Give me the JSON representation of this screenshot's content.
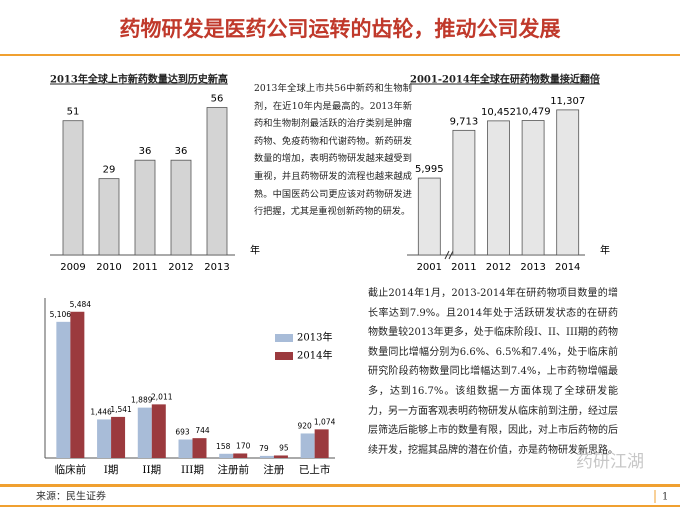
{
  "title": "药物研发是医药公司运转的齿轮，推动公司发展",
  "paragraph_1": "2013年全球上市共56中新药和生物制剂，在近10年内是最高的。2013年新药和生物制剂最活跃的治疗类别是肿瘤药物、免疫药物和代谢药物。新药研发数量的增加，表明药物研发越来越受到重视，并且药物研发的流程也越来越成熟。中国医药公司更应该对药物研发进行把握，尤其是重视创新药物的研发。",
  "paragraph_2": "截止2014年1月，2013-2014年在研药物项目数量的增长率达到7.9%。且2014年处于活跃研发状态的在研药物数量较2013年更多，处于临床阶段I、II、III期的药物数量同比增幅分别为6.6%、6.5%和7.4%，处于临床前研究阶段药物数量同比增幅达到7.4%，上市药物增幅最多，达到16.7%。该组数据一方面体现了全球研发能力，另一方面客观表明药物研发从临床前到注册，经过层层筛选后能够上市的数量有限，因此，对上市后药物的后续开发，挖掘其品牌的潜在价值，亦是药物研发新思路。",
  "footer": "来源：民生证券",
  "page_number": "1",
  "watermark": "药研江湖",
  "chart_data": [
    {
      "type": "bar",
      "title": "2013年全球上市新药数量达到历史新高",
      "categories": [
        "2009",
        "2010",
        "2011",
        "2012",
        "2013"
      ],
      "values": [
        51,
        29,
        36,
        36,
        56
      ],
      "x_unit": "年",
      "color": "#d4d4d4",
      "ylim": [
        0,
        60
      ]
    },
    {
      "type": "bar",
      "title": "2001-2014年全球在研药物数量接近翻倍",
      "categories": [
        "2001",
        "2011",
        "2012",
        "2013",
        "2014"
      ],
      "values": [
        5995,
        9713,
        10452,
        10479,
        11307
      ],
      "value_labels": [
        "5,995",
        "9,713",
        "10,452",
        "10,479",
        "11,307"
      ],
      "x_unit": "年",
      "color": "#e6e6e6",
      "ylim": [
        0,
        12000
      ]
    },
    {
      "type": "grouped_bar",
      "categories": [
        "临床前",
        "I期",
        "II期",
        "III期",
        "注册前",
        "注册",
        "已上市"
      ],
      "series": [
        {
          "name": "2013年",
          "color": "#a8bcd8",
          "values": [
            5106,
            1446,
            1889,
            693,
            158,
            79,
            920
          ],
          "value_labels": [
            "5,106",
            "1,446",
            "1,889",
            "693",
            "158",
            "79",
            "920"
          ]
        },
        {
          "name": "2014年",
          "color": "#9b3a3e",
          "values": [
            5484,
            1541,
            2011,
            744,
            170,
            95,
            1074
          ],
          "value_labels": [
            "5,484",
            "1,541",
            "2,011",
            "744",
            "170",
            "95",
            "1,074"
          ]
        }
      ],
      "ylim": [
        0,
        6000
      ]
    }
  ]
}
